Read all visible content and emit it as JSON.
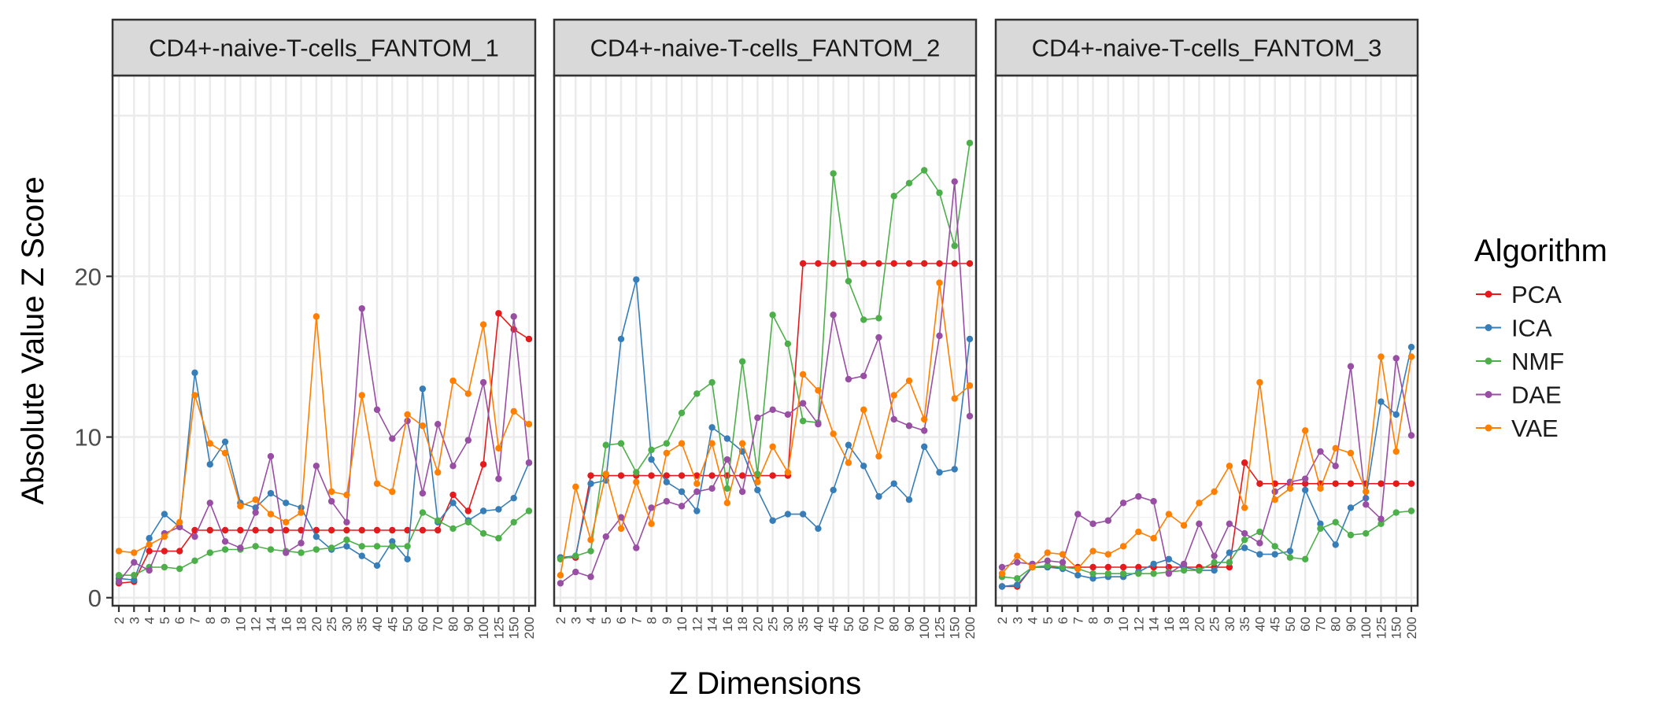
{
  "chart_data": {
    "type": "line",
    "ylabel": "Absolute Value Z Score",
    "xlabel": "Z Dimensions",
    "x": [
      "2",
      "3",
      "4",
      "5",
      "6",
      "7",
      "8",
      "9",
      "10",
      "12",
      "14",
      "16",
      "18",
      "20",
      "25",
      "30",
      "35",
      "40",
      "45",
      "50",
      "60",
      "70",
      "80",
      "90",
      "100",
      "125",
      "150",
      "200"
    ],
    "y_ticks": [
      0,
      10,
      20
    ],
    "ylim": [
      -0.5,
      32.5
    ],
    "legend": {
      "title": "Algorithm",
      "position": "right",
      "entries": [
        "PCA",
        "ICA",
        "NMF",
        "DAE",
        "VAE"
      ]
    },
    "colors": {
      "PCA": "#e41a1c",
      "ICA": "#377eb8",
      "NMF": "#4daf4a",
      "DAE": "#984ea3",
      "VAE": "#ff7f00"
    },
    "grid": true,
    "facets": [
      {
        "title": "CD4+-naive-T-cells_FANTOM_1",
        "series": [
          {
            "name": "PCA",
            "values": [
              0.9,
              1.0,
              2.9,
              2.9,
              2.9,
              4.2,
              4.2,
              4.2,
              4.2,
              4.2,
              4.2,
              4.2,
              4.2,
              4.2,
              4.2,
              4.2,
              4.2,
              4.2,
              4.2,
              4.2,
              4.2,
              4.2,
              6.4,
              5.4,
              8.3,
              17.7,
              16.7,
              16.1
            ]
          },
          {
            "name": "ICA",
            "values": [
              1.2,
              1.1,
              3.7,
              5.2,
              4.4,
              14.0,
              8.3,
              9.7,
              5.9,
              5.6,
              6.5,
              5.9,
              5.6,
              3.8,
              3.0,
              3.2,
              2.6,
              2.0,
              3.5,
              2.4,
              13.0,
              4.7,
              5.9,
              4.8,
              5.4,
              5.5,
              6.2,
              8.4
            ]
          },
          {
            "name": "NMF",
            "values": [
              1.4,
              1.4,
              1.9,
              1.9,
              1.8,
              2.3,
              2.8,
              3.0,
              3.0,
              3.2,
              3.0,
              2.9,
              2.8,
              3.0,
              3.1,
              3.6,
              3.2,
              3.2,
              3.2,
              3.2,
              5.3,
              4.8,
              4.3,
              4.7,
              4.0,
              3.7,
              4.7,
              5.4
            ]
          },
          {
            "name": "DAE",
            "values": [
              1.0,
              2.2,
              1.7,
              4.0,
              4.4,
              3.8,
              5.9,
              3.5,
              3.1,
              5.3,
              8.8,
              2.8,
              3.4,
              8.2,
              6.0,
              4.7,
              18.0,
              11.7,
              9.9,
              11.0,
              6.5,
              10.8,
              8.2,
              9.8,
              13.4,
              7.4,
              17.5,
              8.4
            ]
          },
          {
            "name": "VAE",
            "values": [
              2.9,
              2.8,
              3.3,
              3.8,
              4.7,
              12.6,
              9.6,
              9.0,
              5.7,
              6.1,
              5.2,
              4.7,
              5.3,
              17.5,
              6.6,
              6.4,
              12.6,
              7.1,
              6.6,
              11.4,
              10.7,
              7.8,
              13.5,
              12.7,
              17.0,
              9.3,
              11.6,
              10.8
            ]
          }
        ]
      },
      {
        "title": "CD4+-naive-T-cells_FANTOM_2",
        "series": [
          {
            "name": "PCA",
            "values": [
              2.5,
              2.5,
              7.6,
              7.6,
              7.6,
              7.6,
              7.6,
              7.6,
              7.6,
              7.6,
              7.6,
              7.6,
              7.6,
              7.6,
              7.6,
              7.6,
              20.8,
              20.8,
              20.8,
              20.8,
              20.8,
              20.8,
              20.8,
              20.8,
              20.8,
              20.8,
              20.8,
              20.8
            ]
          },
          {
            "name": "ICA",
            "values": [
              2.5,
              2.6,
              7.1,
              7.3,
              16.1,
              19.8,
              8.6,
              7.2,
              6.6,
              5.4,
              10.6,
              9.9,
              9.1,
              6.7,
              4.8,
              5.2,
              5.2,
              4.3,
              6.7,
              9.5,
              8.2,
              6.3,
              7.1,
              6.1,
              9.4,
              7.8,
              8.0,
              16.1
            ]
          },
          {
            "name": "NMF",
            "values": [
              2.4,
              2.6,
              2.9,
              9.5,
              9.6,
              7.8,
              9.2,
              9.6,
              11.5,
              12.7,
              13.4,
              6.8,
              14.7,
              7.7,
              17.6,
              15.8,
              11.0,
              10.9,
              26.4,
              19.7,
              17.3,
              17.4,
              25.0,
              25.8,
              26.6,
              25.2,
              21.9,
              28.3
            ]
          },
          {
            "name": "DAE",
            "values": [
              0.9,
              1.6,
              1.3,
              3.8,
              5.0,
              3.1,
              5.6,
              6.0,
              5.7,
              6.6,
              6.8,
              8.6,
              6.6,
              11.2,
              11.7,
              11.4,
              12.1,
              10.8,
              17.6,
              13.6,
              13.8,
              16.2,
              11.1,
              10.7,
              10.4,
              16.3,
              25.9,
              11.3
            ]
          },
          {
            "name": "VAE",
            "values": [
              1.4,
              6.9,
              3.6,
              7.7,
              4.3,
              7.2,
              4.6,
              9.0,
              9.6,
              7.1,
              9.6,
              5.9,
              9.6,
              7.2,
              9.4,
              7.8,
              13.9,
              12.9,
              10.2,
              8.4,
              11.7,
              8.8,
              12.6,
              13.5,
              11.1,
              19.6,
              12.4,
              13.2
            ]
          }
        ]
      },
      {
        "title": "CD4+-naive-T-cells_FANTOM_3",
        "series": [
          {
            "name": "PCA",
            "values": [
              0.7,
              0.7,
              1.9,
              1.9,
              1.9,
              1.9,
              1.9,
              1.9,
              1.9,
              1.9,
              1.9,
              1.9,
              1.9,
              1.9,
              1.9,
              1.9,
              8.4,
              7.1,
              7.1,
              7.1,
              7.1,
              7.1,
              7.1,
              7.1,
              7.1,
              7.1,
              7.1,
              7.1
            ]
          },
          {
            "name": "ICA",
            "values": [
              0.7,
              0.8,
              1.9,
              1.9,
              1.8,
              1.4,
              1.2,
              1.3,
              1.3,
              1.6,
              2.1,
              2.4,
              1.9,
              1.7,
              1.7,
              2.8,
              3.1,
              2.7,
              2.7,
              2.9,
              6.7,
              4.6,
              3.3,
              5.6,
              6.2,
              12.2,
              11.4,
              15.6
            ]
          },
          {
            "name": "NMF",
            "values": [
              1.3,
              1.2,
              1.9,
              2.0,
              1.9,
              1.8,
              1.5,
              1.5,
              1.5,
              1.5,
              1.5,
              1.6,
              1.7,
              1.7,
              2.2,
              2.2,
              3.6,
              4.1,
              3.2,
              2.5,
              2.4,
              4.3,
              4.7,
              3.9,
              4.0,
              4.6,
              5.3,
              5.4
            ]
          },
          {
            "name": "DAE",
            "values": [
              1.9,
              2.2,
              2.1,
              2.3,
              2.2,
              5.2,
              4.6,
              4.8,
              5.9,
              6.3,
              6.0,
              1.5,
              2.1,
              4.6,
              2.6,
              4.6,
              4.0,
              3.4,
              6.6,
              7.2,
              7.4,
              9.1,
              8.2,
              14.4,
              5.8,
              4.9,
              14.9,
              10.1
            ]
          },
          {
            "name": "VAE",
            "values": [
              1.5,
              2.6,
              1.9,
              2.8,
              2.7,
              1.8,
              2.9,
              2.7,
              3.2,
              4.1,
              3.7,
              5.2,
              4.5,
              5.9,
              6.6,
              8.2,
              5.6,
              13.4,
              6.1,
              6.8,
              10.4,
              6.8,
              9.3,
              9.0,
              6.6,
              15.0,
              9.1,
              15.0
            ]
          }
        ]
      }
    ]
  }
}
